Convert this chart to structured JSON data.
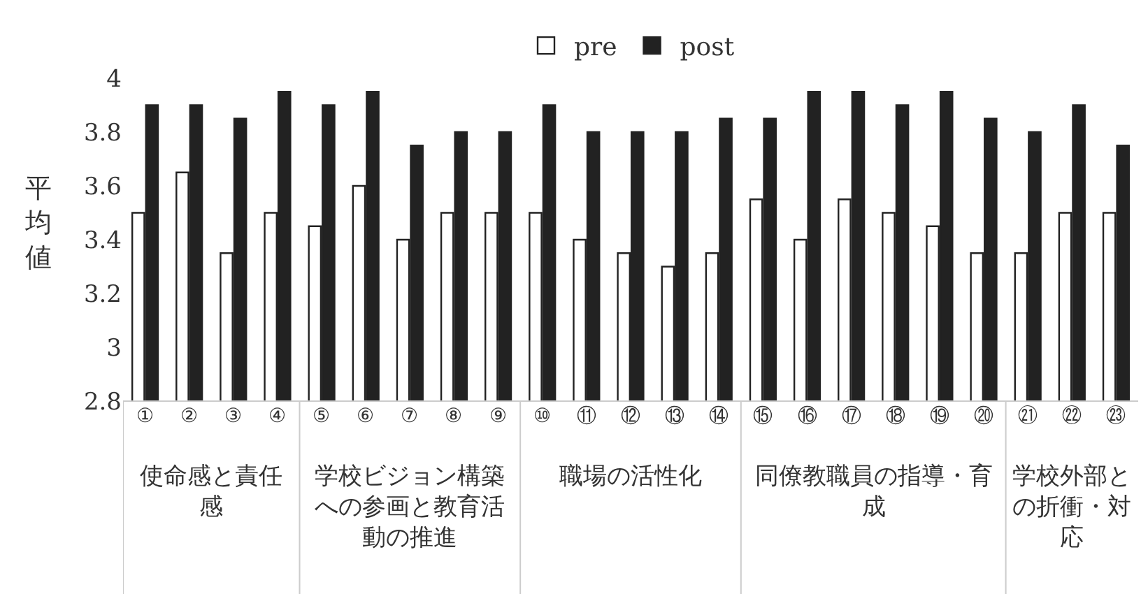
{
  "chart_data": {
    "type": "bar",
    "ylabel": "平均値",
    "categories": [
      "①",
      "②",
      "③",
      "④",
      "⑤",
      "⑥",
      "⑦",
      "⑧",
      "⑨",
      "⑩",
      "⑪",
      "⑫",
      "⑬",
      "⑭",
      "⑮",
      "⑯",
      "⑰",
      "⑱",
      "⑲",
      "⑳",
      "㉑",
      "㉒",
      "㉓"
    ],
    "series": [
      {
        "name": "pre",
        "color": "#ffffff",
        "values": [
          3.5,
          3.65,
          3.35,
          3.5,
          3.45,
          3.6,
          3.4,
          3.5,
          3.5,
          3.5,
          3.4,
          3.35,
          3.3,
          3.35,
          3.55,
          3.4,
          3.55,
          3.5,
          3.45,
          3.35,
          3.35,
          3.5,
          3.5
        ]
      },
      {
        "name": "post",
        "color": "#222222",
        "values": [
          3.9,
          3.9,
          3.85,
          3.95,
          3.9,
          3.95,
          3.75,
          3.8,
          3.8,
          3.9,
          3.8,
          3.8,
          3.8,
          3.85,
          3.85,
          3.95,
          3.95,
          3.9,
          3.95,
          3.85,
          3.8,
          3.9,
          3.75
        ]
      }
    ],
    "annotations": [
      "使命感と責任感",
      "学校ビジョン構築への参画と教育活動の推進",
      "職場の活性化",
      "同僚教職員の指導・育成",
      "学校外部との折衝・対応"
    ],
    "ylim": [
      2.8,
      4
    ],
    "yticks": [
      2.8,
      3,
      3.2,
      3.4,
      3.6,
      3.8,
      4
    ],
    "legend": "top"
  }
}
